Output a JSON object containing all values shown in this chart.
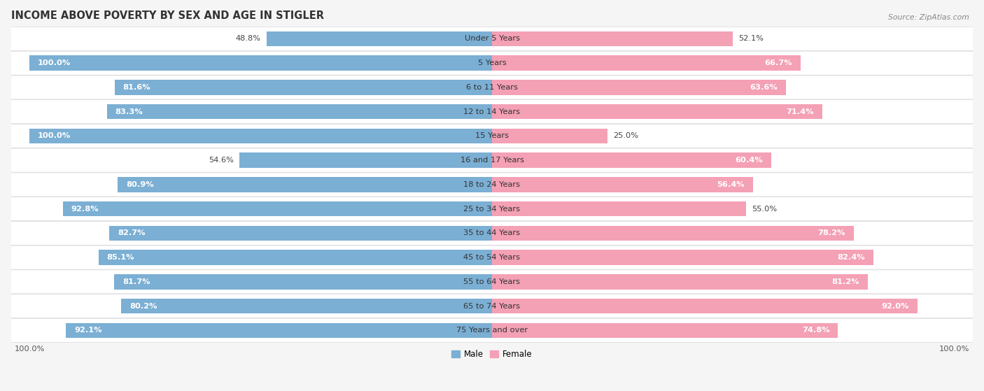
{
  "title": "INCOME ABOVE POVERTY BY SEX AND AGE IN STIGLER",
  "source": "Source: ZipAtlas.com",
  "categories": [
    "Under 5 Years",
    "5 Years",
    "6 to 11 Years",
    "12 to 14 Years",
    "15 Years",
    "16 and 17 Years",
    "18 to 24 Years",
    "25 to 34 Years",
    "35 to 44 Years",
    "45 to 54 Years",
    "55 to 64 Years",
    "65 to 74 Years",
    "75 Years and over"
  ],
  "male_values": [
    48.8,
    100.0,
    81.6,
    83.3,
    100.0,
    54.6,
    80.9,
    92.8,
    82.7,
    85.1,
    81.7,
    80.2,
    92.1
  ],
  "female_values": [
    52.1,
    66.7,
    63.6,
    71.4,
    25.0,
    60.4,
    56.4,
    55.0,
    78.2,
    82.4,
    81.2,
    92.0,
    74.8
  ],
  "male_color": "#7bafd4",
  "female_color": "#f4a0b5",
  "male_label": "Male",
  "female_label": "Female",
  "axis_max": 100.0,
  "bg_color": "#f5f5f5",
  "bar_bg_color": "#ffffff",
  "title_fontsize": 10.5,
  "label_fontsize": 8.2,
  "source_fontsize": 7.8,
  "legend_fontsize": 8.5
}
